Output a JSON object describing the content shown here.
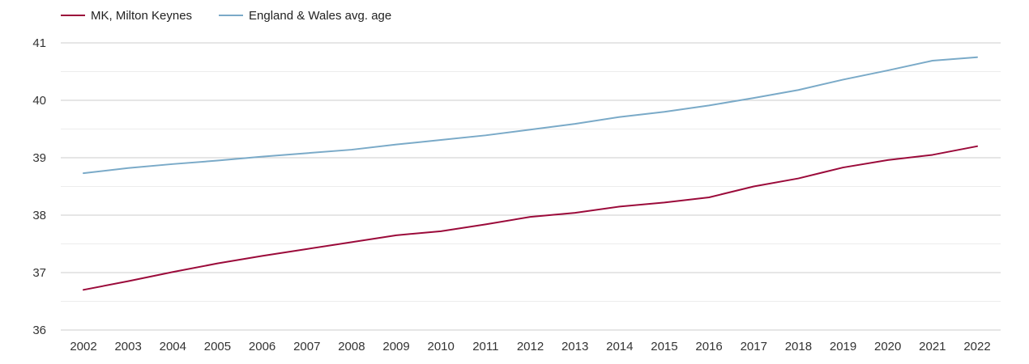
{
  "chart_data": {
    "type": "line",
    "title": "",
    "xlabel": "",
    "ylabel": "",
    "x": [
      "2002",
      "2003",
      "2004",
      "2005",
      "2006",
      "2007",
      "2008",
      "2009",
      "2010",
      "2011",
      "2012",
      "2013",
      "2014",
      "2015",
      "2016",
      "2017",
      "2018",
      "2019",
      "2020",
      "2021",
      "2022"
    ],
    "ylim": [
      36,
      41
    ],
    "yticks": [
      "36",
      "37",
      "38",
      "39",
      "40",
      "41"
    ],
    "grid": true,
    "legend_position": "top-left",
    "series": [
      {
        "name": "MK, Milton Keynes",
        "color": "#9b0a3a",
        "values": [
          36.7,
          36.85,
          37.01,
          37.16,
          37.29,
          37.41,
          37.53,
          37.65,
          37.72,
          37.84,
          37.97,
          38.04,
          38.15,
          38.22,
          38.31,
          38.5,
          38.64,
          38.83,
          38.96,
          39.05,
          39.2
        ]
      },
      {
        "name": "England & Wales avg. age",
        "color": "#7aaac8",
        "values": [
          38.73,
          38.82,
          38.89,
          38.95,
          39.02,
          39.08,
          39.14,
          39.23,
          39.31,
          39.39,
          39.49,
          39.59,
          39.71,
          39.8,
          39.91,
          40.04,
          40.18,
          40.36,
          40.52,
          40.69,
          40.75
        ]
      }
    ]
  }
}
